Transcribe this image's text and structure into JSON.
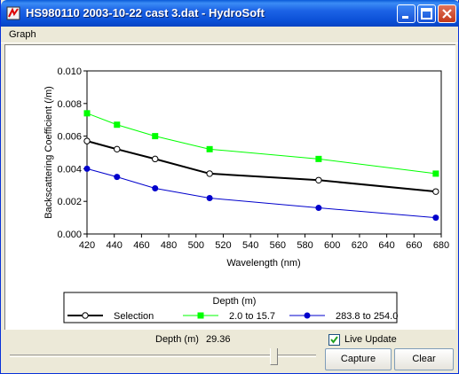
{
  "window": {
    "title": "HS980110 2003-10-22 cast 3.dat - HydroSoft"
  },
  "menu": {
    "graph_label": "Graph"
  },
  "status": {
    "depth_label": "Depth (m)",
    "depth_value": "29.36",
    "live_update_label": "Live Update",
    "live_update_checked": true
  },
  "buttons": {
    "capture": "Capture",
    "clear": "Clear"
  },
  "colors": {
    "selection": "#000000",
    "series_2": "#00ff00",
    "series_3": "#0000cc",
    "accent": "#0a5ad8"
  },
  "chart_data": {
    "type": "line",
    "xlabel": "Wavelength (nm)",
    "ylabel": "Backscattering Coefficient (/m)",
    "xlim": [
      420,
      680
    ],
    "ylim": [
      0,
      0.01
    ],
    "x_ticks": [
      "420",
      "440",
      "460",
      "480",
      "500",
      "520",
      "540",
      "560",
      "580",
      "600",
      "620",
      "640",
      "660",
      "680"
    ],
    "y_ticks": [
      "0.000",
      "0.002",
      "0.004",
      "0.006",
      "0.008",
      "0.010"
    ],
    "legend_title": "Depth (m)",
    "x": [
      420,
      442,
      470,
      510,
      590,
      676
    ],
    "series": [
      {
        "name": "Selection",
        "color": "#000000",
        "marker": "open-circle",
        "values": [
          0.0057,
          0.0052,
          0.0046,
          0.0037,
          0.0033,
          0.0026
        ]
      },
      {
        "name": "2.0 to 15.7",
        "color": "#00ff00",
        "marker": "square",
        "values": [
          0.0074,
          0.0067,
          0.006,
          0.0052,
          0.0046,
          0.0037
        ]
      },
      {
        "name": "283.8 to 254.0",
        "color": "#0000cc",
        "marker": "dot",
        "values": [
          0.004,
          0.0035,
          0.0028,
          0.0022,
          0.0016,
          0.001
        ]
      }
    ]
  }
}
